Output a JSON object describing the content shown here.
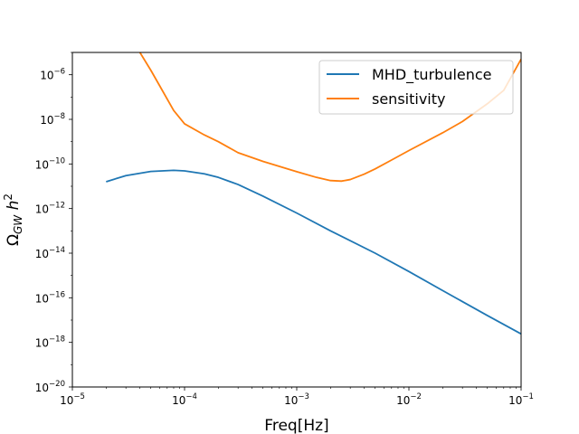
{
  "chart_data": {
    "type": "line",
    "title": "",
    "xlabel": "Freq[Hz]",
    "ylabel_base": "Ω",
    "ylabel_sub": "GW",
    "ylabel_h": "h",
    "ylabel_sup": "2",
    "xscale": "log",
    "yscale": "log",
    "xlim": [
      1e-05,
      0.1
    ],
    "ylim": [
      1e-20,
      1e-05
    ],
    "grid": false,
    "legend_position": "top-right",
    "x_ticks": [
      {
        "base": "10",
        "exp": "−5",
        "value": 1e-05
      },
      {
        "base": "10",
        "exp": "−4",
        "value": 0.0001
      },
      {
        "base": "10",
        "exp": "−3",
        "value": 0.001
      },
      {
        "base": "10",
        "exp": "−2",
        "value": 0.01
      },
      {
        "base": "10",
        "exp": "−1",
        "value": 0.1
      }
    ],
    "y_ticks": [
      {
        "base": "10",
        "exp": "−20",
        "value": 1e-20
      },
      {
        "base": "10",
        "exp": "−18",
        "value": 1e-18
      },
      {
        "base": "10",
        "exp": "−16",
        "value": 1e-16
      },
      {
        "base": "10",
        "exp": "−14",
        "value": 1e-14
      },
      {
        "base": "10",
        "exp": "−12",
        "value": 1e-12
      },
      {
        "base": "10",
        "exp": "−10",
        "value": 1e-10
      },
      {
        "base": "10",
        "exp": "−8",
        "value": 1e-08
      },
      {
        "base": "10",
        "exp": "−6",
        "value": 1e-06
      }
    ],
    "series": [
      {
        "name": "MHD_turbulence",
        "color": "#1f77b4",
        "x": [
          2e-05,
          3e-05,
          5e-05,
          8e-05,
          0.0001,
          0.00015,
          0.0002,
          0.0003,
          0.0005,
          0.001,
          0.002,
          0.005,
          0.01,
          0.02,
          0.05,
          0.1
        ],
        "y": [
          1.6e-11,
          3e-11,
          4.6e-11,
          5.2e-11,
          4.9e-11,
          3.6e-11,
          2.5e-11,
          1.2e-11,
          3.6e-12,
          6.3e-13,
          1e-13,
          1e-14,
          1.5e-15,
          2.1e-16,
          1.6e-17,
          2.4e-18
        ]
      },
      {
        "name": "sensitivity",
        "color": "#ff7f0e",
        "x": [
          4e-05,
          5e-05,
          6e-05,
          8e-05,
          0.0001,
          0.00015,
          0.0002,
          0.0003,
          0.0005,
          0.001,
          0.0015,
          0.002,
          0.0025,
          0.003,
          0.004,
          0.005,
          0.007,
          0.01,
          0.02,
          0.03,
          0.05,
          0.07,
          0.1
        ],
        "y": [
          1e-05,
          1.6e-06,
          3.2e-07,
          2.5e-08,
          6.3e-09,
          2e-09,
          1e-09,
          3.2e-10,
          1.3e-10,
          4.5e-11,
          2.5e-11,
          1.8e-11,
          1.7e-11,
          2e-11,
          3.5e-11,
          6e-11,
          1.5e-10,
          4e-10,
          2.5e-09,
          8e-09,
          5e-08,
          2e-07,
          5e-06
        ]
      }
    ]
  }
}
